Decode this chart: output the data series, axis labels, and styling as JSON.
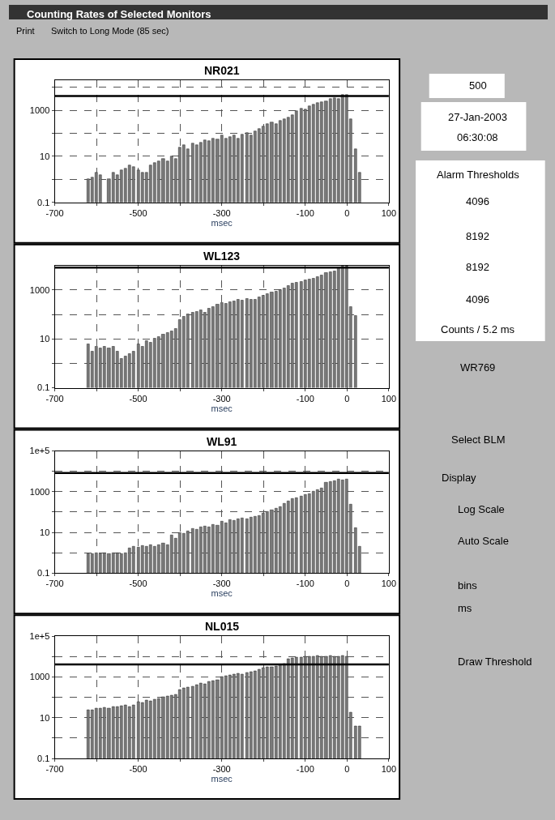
{
  "chart_data": [
    {
      "type": "bar",
      "title": "NR021",
      "xlabel": "msec",
      "color": "#7a7a7a",
      "log": "y",
      "grid": true,
      "x": [
        -620,
        -610,
        -600,
        -590,
        -580,
        -570,
        -560,
        -550,
        -540,
        -530,
        -520,
        -510,
        -500,
        -490,
        -480,
        -470,
        -460,
        -450,
        -440,
        -430,
        -420,
        -410,
        -400,
        -390,
        -380,
        -370,
        -360,
        -350,
        -340,
        -330,
        -320,
        -310,
        -300,
        -290,
        -280,
        -270,
        -260,
        -250,
        -240,
        -230,
        -220,
        -210,
        -200,
        -190,
        -180,
        -170,
        -160,
        -150,
        -140,
        -130,
        -120,
        -110,
        -100,
        -90,
        -80,
        -70,
        -60,
        -50,
        -40,
        -30,
        -20,
        -10,
        0,
        10,
        20,
        30
      ],
      "values": [
        1,
        1.2,
        2,
        1.5,
        null,
        1,
        2,
        1.5,
        2.5,
        3,
        4,
        3.5,
        2.5,
        2,
        2,
        4,
        5,
        6,
        8,
        6,
        10,
        8,
        25,
        30,
        20,
        35,
        30,
        40,
        50,
        45,
        60,
        55,
        80,
        60,
        70,
        80,
        60,
        90,
        100,
        80,
        120,
        150,
        200,
        250,
        300,
        250,
        350,
        400,
        500,
        600,
        900,
        1200,
        1100,
        1500,
        1800,
        2000,
        2200,
        2500,
        3000,
        3500,
        3000,
        4500,
        4500,
        400,
        20,
        2
      ],
      "xlim": [
        -700,
        100
      ],
      "xticks": [
        -700,
        {
          "value": -600,
          "label": null
        },
        -500,
        {
          "value": -400,
          "label": null
        },
        -300,
        {
          "value": -200,
          "label": null
        },
        -100,
        0,
        100
      ],
      "ylim": [
        0.1,
        20000
      ],
      "yticks": [
        0.1,
        {
          "value": 1,
          "label": null
        },
        10,
        {
          "value": 100,
          "label": null
        },
        1000,
        {
          "value": 10000,
          "label": null
        }
      ],
      "ref_lines": [
        {
          "axis": "y",
          "value": 4096,
          "color": "#000000"
        }
      ]
    },
    {
      "type": "bar",
      "title": "WL123",
      "xlabel": "msec",
      "color": "#7a7a7a",
      "log": "y",
      "grid": true,
      "x": [
        -620,
        -610,
        -600,
        -590,
        -580,
        -570,
        -560,
        -550,
        -540,
        -530,
        -520,
        -510,
        -500,
        -490,
        -480,
        -470,
        -460,
        -450,
        -440,
        -430,
        -420,
        -410,
        -400,
        -390,
        -380,
        -370,
        -360,
        -350,
        -340,
        -330,
        -320,
        -310,
        -300,
        -290,
        -280,
        -270,
        -260,
        -250,
        -240,
        -230,
        -220,
        -210,
        -200,
        -190,
        -180,
        -170,
        -160,
        -150,
        -140,
        -130,
        -120,
        -110,
        -100,
        -90,
        -80,
        -70,
        -60,
        -50,
        -40,
        -30,
        -20,
        -10,
        0,
        10,
        20
      ],
      "values": [
        6,
        3,
        5,
        4,
        5,
        4,
        5,
        3,
        1.5,
        2,
        2.5,
        3,
        6,
        5,
        8,
        7,
        10,
        12,
        15,
        18,
        20,
        25,
        60,
        80,
        100,
        120,
        130,
        150,
        120,
        180,
        200,
        250,
        300,
        280,
        320,
        350,
        400,
        380,
        450,
        420,
        400,
        500,
        600,
        700,
        800,
        900,
        1000,
        1200,
        1500,
        1800,
        2000,
        2200,
        2500,
        2800,
        3000,
        3500,
        4000,
        5000,
        5500,
        6000,
        8000,
        9000,
        9000,
        200,
        90
      ],
      "xlim": [
        -700,
        100
      ],
      "xticks": [
        -700,
        {
          "value": -600,
          "label": null
        },
        -500,
        {
          "value": -400,
          "label": null
        },
        -300,
        {
          "value": -200,
          "label": null
        },
        -100,
        0,
        100
      ],
      "ylim": [
        0.1,
        10000
      ],
      "yticks": [
        0.1,
        {
          "value": 1,
          "label": null
        },
        10,
        {
          "value": 100,
          "label": null
        },
        1000
      ],
      "ref_lines": [
        {
          "axis": "y",
          "value": 8192,
          "color": "#000000"
        }
      ]
    },
    {
      "type": "bar",
      "title": "WL91",
      "xlabel": "msec",
      "color": "#7a7a7a",
      "log": "y",
      "grid": true,
      "x": [
        -620,
        -610,
        -600,
        -590,
        -580,
        -570,
        -560,
        -550,
        -540,
        -530,
        -520,
        -510,
        -500,
        -490,
        -480,
        -470,
        -460,
        -450,
        -440,
        -430,
        -420,
        -410,
        -400,
        -390,
        -380,
        -370,
        -360,
        -350,
        -340,
        -330,
        -320,
        -310,
        -300,
        -290,
        -280,
        -270,
        -260,
        -250,
        -240,
        -230,
        -220,
        -210,
        -200,
        -190,
        -180,
        -170,
        -160,
        -150,
        -140,
        -130,
        -120,
        -110,
        -100,
        -90,
        -80,
        -70,
        -60,
        -50,
        -40,
        -30,
        -20,
        -10,
        0,
        10,
        20,
        30
      ],
      "values": [
        0.9,
        0.9,
        1,
        0.9,
        1,
        0.9,
        1,
        1,
        0.9,
        1,
        1.7,
        2,
        1.8,
        2.2,
        2,
        2.5,
        2,
        2.5,
        3,
        2.5,
        7,
        5,
        10,
        9,
        12,
        15,
        14,
        18,
        20,
        18,
        25,
        22,
        35,
        30,
        40,
        38,
        45,
        50,
        45,
        55,
        60,
        65,
        90,
        100,
        120,
        150,
        180,
        250,
        350,
        450,
        500,
        600,
        700,
        800,
        1000,
        1200,
        1500,
        2800,
        3000,
        3500,
        4000,
        3800,
        4000,
        240,
        17,
        2
      ],
      "xlim": [
        -700,
        100
      ],
      "xticks": [
        -700,
        {
          "value": -600,
          "label": null
        },
        -500,
        {
          "value": -400,
          "label": null
        },
        -300,
        {
          "value": -200,
          "label": null
        },
        -100,
        0,
        100
      ],
      "ylim": [
        0.1,
        100000
      ],
      "yticks": [
        0.1,
        {
          "value": 1,
          "label": null
        },
        10,
        {
          "value": 100,
          "label": null
        },
        1000,
        {
          "value": 10000,
          "label": null
        },
        {
          "value": 100000,
          "label": "1e+5"
        }
      ],
      "ref_lines": [
        {
          "axis": "y",
          "value": 8192,
          "color": "#000000"
        }
      ]
    },
    {
      "type": "bar",
      "title": "NL015",
      "xlabel": "msec",
      "color": "#7a7a7a",
      "log": "y",
      "grid": true,
      "x": [
        -620,
        -610,
        -600,
        -590,
        -580,
        -570,
        -560,
        -550,
        -540,
        -530,
        -520,
        -510,
        -500,
        -490,
        -480,
        -470,
        -460,
        -450,
        -440,
        -430,
        -420,
        -410,
        -400,
        -390,
        -380,
        -370,
        -360,
        -350,
        -340,
        -330,
        -320,
        -310,
        -300,
        -290,
        -280,
        -270,
        -260,
        -250,
        -240,
        -230,
        -220,
        -210,
        -200,
        -190,
        -180,
        -170,
        -160,
        -150,
        -140,
        -130,
        -120,
        -110,
        -100,
        -90,
        -80,
        -70,
        -60,
        -50,
        -40,
        -30,
        -20,
        -10,
        0,
        10,
        20,
        30
      ],
      "values": [
        23,
        25,
        28,
        30,
        32,
        30,
        35,
        33,
        38,
        40,
        36,
        40,
        60,
        55,
        70,
        65,
        80,
        90,
        100,
        110,
        120,
        140,
        230,
        280,
        300,
        350,
        400,
        500,
        450,
        600,
        650,
        700,
        1000,
        1100,
        1200,
        1300,
        1500,
        1400,
        1600,
        1800,
        2000,
        2300,
        2700,
        3000,
        3200,
        3500,
        4000,
        4400,
        8000,
        8500,
        9000,
        9500,
        10000,
        10000,
        10500,
        11000,
        10000,
        10500,
        11000,
        10000,
        10500,
        11000,
        10000,
        19,
        3.7,
        3.7
      ],
      "xlim": [
        -700,
        100
      ],
      "xticks": [
        -700,
        {
          "value": -600,
          "label": null
        },
        -500,
        {
          "value": -400,
          "label": null
        },
        -300,
        {
          "value": -200,
          "label": null
        },
        -100,
        0,
        100
      ],
      "ylim": [
        0.1,
        100000
      ],
      "yticks": [
        0.1,
        {
          "value": 1,
          "label": null
        },
        10,
        {
          "value": 100,
          "label": null
        },
        1000,
        {
          "value": 10000,
          "label": null
        },
        {
          "value": 100000,
          "label": "1e+5"
        }
      ],
      "ref_lines": [
        {
          "axis": "y",
          "value": 4096,
          "color": "#000000"
        }
      ]
    },
    {
      "type": "other",
      "title": "Counting Rates of Selected Monitors",
      "annotations": [
        "Print",
        "Switch to Long Mode (85 sec)",
        "500",
        "27-Jan-2003",
        "06:30:08",
        "Alarm Thresholds",
        "4096",
        "8192",
        "8192",
        "4096",
        "Counts / 5.2 ms",
        "WR769",
        "Select BLM",
        "Display",
        "Log Scale",
        "Auto Scale",
        "bins",
        "ms",
        "Draw Threshold"
      ]
    }
  ]
}
